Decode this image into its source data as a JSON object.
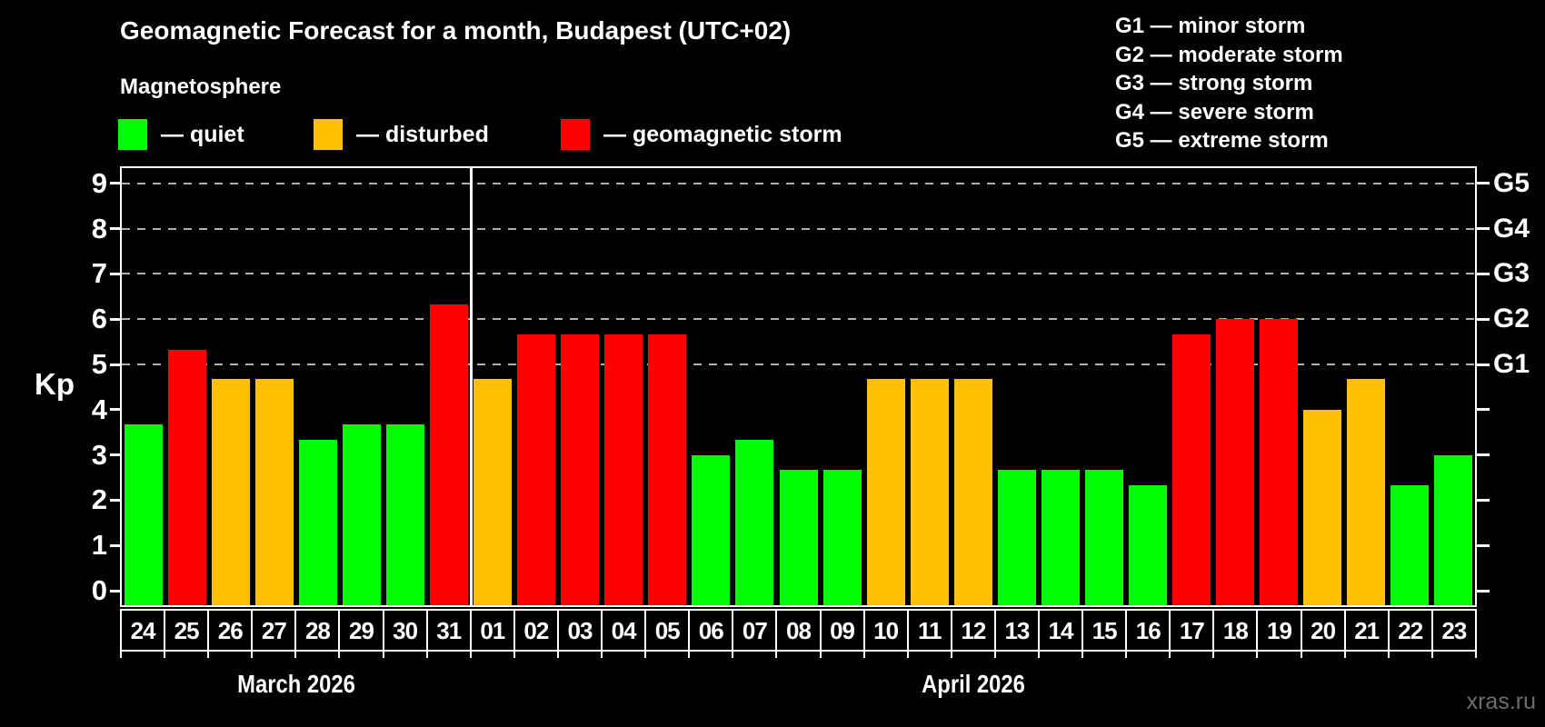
{
  "title": "Geomagnetic Forecast for a month, Budapest (UTC+02)",
  "subtitle": "Magnetosphere",
  "kp_axis_label": "Kp",
  "watermark": "xras.ru",
  "legend": {
    "items": [
      {
        "status": "quiet",
        "label": "— quiet"
      },
      {
        "status": "disturbed",
        "label": "— disturbed"
      },
      {
        "status": "storm",
        "label": "— geomagnetic storm"
      }
    ]
  },
  "storm_scale_legend": [
    "G1 — minor storm",
    "G2 — moderate storm",
    "G3 — strong storm",
    "G4 — severe storm",
    "G5 — extreme storm"
  ],
  "chart_data": {
    "type": "bar",
    "title": "Geomagnetic Forecast for a month, Budapest (UTC+02)",
    "xlabel": "",
    "ylabel": "Kp",
    "ylim": [
      0,
      9
    ],
    "y_ticks": [
      0,
      1,
      2,
      3,
      4,
      5,
      6,
      7,
      8,
      9
    ],
    "gridlines_at": [
      5,
      6,
      7,
      8,
      9
    ],
    "grid": true,
    "legend_position": "top-left",
    "right_axis_ticks": [
      {
        "value": 5,
        "label": "G1"
      },
      {
        "value": 6,
        "label": "G2"
      },
      {
        "value": 7,
        "label": "G3"
      },
      {
        "value": 8,
        "label": "G4"
      },
      {
        "value": 9,
        "label": "G5"
      }
    ],
    "months": [
      {
        "label": "March 2026",
        "day_count": 8
      },
      {
        "label": "April 2026",
        "day_count": 23
      }
    ],
    "categories": [
      "24",
      "25",
      "26",
      "27",
      "28",
      "29",
      "30",
      "31",
      "01",
      "02",
      "03",
      "04",
      "05",
      "06",
      "07",
      "08",
      "09",
      "10",
      "11",
      "12",
      "13",
      "14",
      "15",
      "16",
      "17",
      "18",
      "19",
      "20",
      "21",
      "22",
      "23"
    ],
    "values": [
      3.67,
      5.33,
      4.67,
      4.67,
      3.33,
      3.67,
      3.67,
      6.33,
      4.67,
      5.67,
      5.67,
      5.67,
      5.67,
      3.0,
      3.33,
      2.67,
      2.67,
      4.67,
      4.67,
      4.67,
      2.67,
      2.67,
      2.67,
      2.33,
      5.67,
      6.0,
      6.0,
      4.0,
      4.67,
      2.33,
      3.0
    ],
    "statuses": [
      "quiet",
      "storm",
      "disturbed",
      "disturbed",
      "quiet",
      "quiet",
      "quiet",
      "storm",
      "disturbed",
      "storm",
      "storm",
      "storm",
      "storm",
      "quiet",
      "quiet",
      "quiet",
      "quiet",
      "disturbed",
      "disturbed",
      "disturbed",
      "quiet",
      "quiet",
      "quiet",
      "quiet",
      "storm",
      "storm",
      "storm",
      "disturbed",
      "disturbed",
      "quiet",
      "quiet"
    ],
    "status_colors": {
      "quiet": "#00ff00",
      "disturbed": "#ffc000",
      "storm": "#ff0000"
    }
  }
}
